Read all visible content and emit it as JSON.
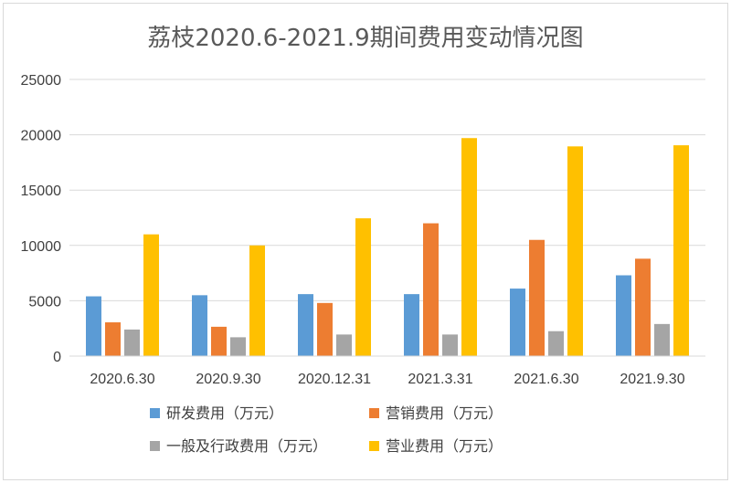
{
  "chart_data": {
    "type": "bar",
    "title": "荔枝2020.6-2021.9期间费用变动情况图",
    "xlabel": "",
    "ylabel": "",
    "ylim": [
      0,
      25000
    ],
    "yticks": [
      0,
      5000,
      10000,
      15000,
      20000,
      25000
    ],
    "ytick_labels": [
      "0",
      "5000",
      "10000",
      "15000",
      "20000",
      "25000"
    ],
    "grid": true,
    "legend_position": "bottom",
    "categories": [
      "2020.6.30",
      "2020.9.30",
      "2020.12.31",
      "2021.3.31",
      "2021.6.30",
      "2021.9.30"
    ],
    "series": [
      {
        "name": "研发费用（万元）",
        "color": "#5b9bd5",
        "values": [
          5400,
          5500,
          5600,
          5600,
          6100,
          7300
        ]
      },
      {
        "name": "营销费用（万元）",
        "color": "#ed7d31",
        "values": [
          3050,
          2650,
          4800,
          12000,
          10500,
          8800
        ]
      },
      {
        "name": "一般及行政费用（万元）",
        "color": "#a5a5a5",
        "values": [
          2400,
          1700,
          1950,
          1950,
          2250,
          2900
        ]
      },
      {
        "name": "营业费用（万元）",
        "color": "#ffc000",
        "values": [
          11000,
          10000,
          12450,
          19700,
          18950,
          19050
        ]
      }
    ]
  }
}
